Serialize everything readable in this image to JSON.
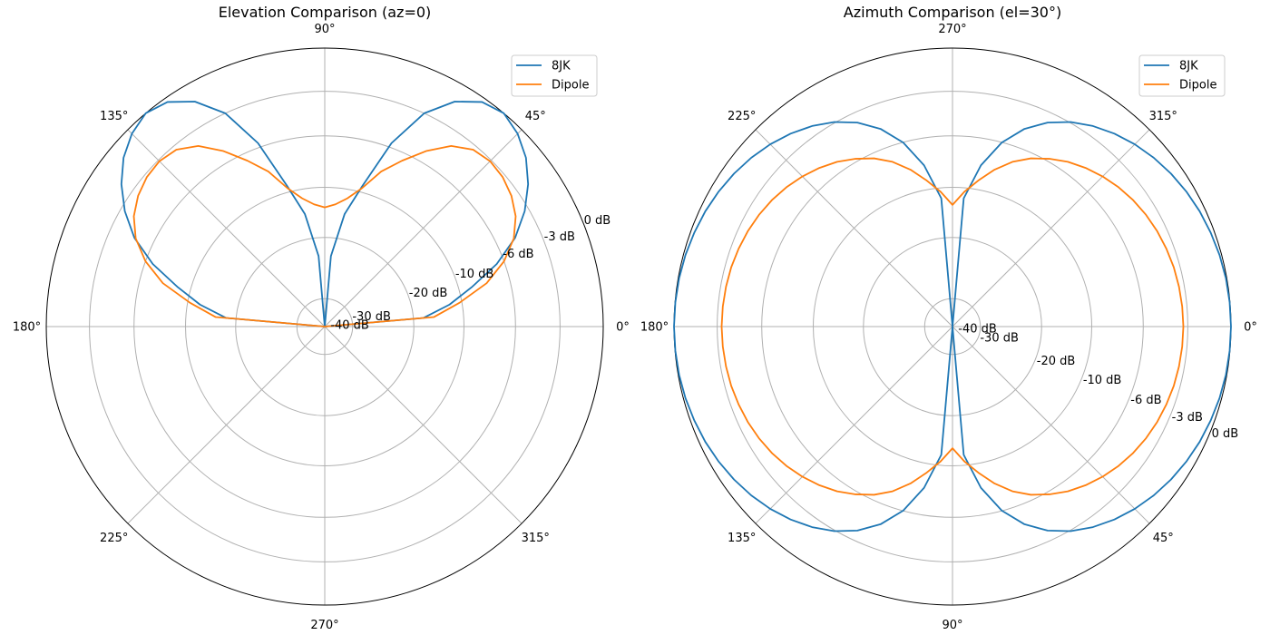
{
  "chart_data": [
    {
      "type": "line",
      "subtype": "polar",
      "title": "Elevation Comparison (az=0)",
      "theta_direction": "counterclockwise",
      "angle_tick_labels": [
        "0°",
        "45°",
        "90°",
        "135°",
        "180°",
        "225°",
        "270°",
        "315°"
      ],
      "angle_ticks_deg": [
        0,
        45,
        90,
        135,
        180,
        225,
        270,
        315
      ],
      "radial_tick_labels": [
        "-40 dB",
        "-30 dB",
        "-20 dB",
        "-10 dB",
        "-6 dB",
        "-3 dB",
        "0 dB"
      ],
      "radial_ticks_db": [
        -40,
        -30,
        -20,
        -10,
        -6,
        -3,
        0
      ],
      "radial_label_angle_deg": 22.5,
      "grid": true,
      "legend": "top-right",
      "series": [
        {
          "name": "8JK",
          "color": "#1f77b4",
          "theta": [
            0,
            5,
            10,
            15,
            20,
            25,
            30,
            35,
            40,
            45,
            50,
            55,
            60,
            65,
            70,
            75,
            80,
            85,
            90,
            95,
            100,
            105,
            110,
            115,
            120,
            125,
            130,
            135,
            140,
            145,
            150,
            155,
            160,
            165,
            170,
            175,
            180
          ],
          "db": [
            -40,
            -18,
            -12.5,
            -9,
            -6.6,
            -4.7,
            -3.3,
            -2.1,
            -1.1,
            -0.4,
            0,
            -0.3,
            -1.3,
            -3,
            -5.7,
            -9.5,
            -15,
            -23,
            -40,
            -23,
            -15,
            -9.5,
            -5.7,
            -3,
            -1.3,
            -0.3,
            0,
            -0.4,
            -1.1,
            -2.1,
            -3.3,
            -4.7,
            -6.6,
            -9,
            -12.5,
            -18,
            -40
          ]
        },
        {
          "name": "Dipole",
          "color": "#ff7f0e",
          "theta": [
            0,
            5,
            10,
            15,
            20,
            25,
            30,
            35,
            40,
            45,
            50,
            55,
            60,
            65,
            70,
            75,
            80,
            85,
            90,
            95,
            100,
            105,
            110,
            115,
            120,
            125,
            130,
            135,
            140,
            145,
            150,
            155,
            160,
            165,
            170,
            175,
            180
          ],
          "db": [
            -40,
            -15.9,
            -10.5,
            -7.8,
            -6,
            -4.8,
            -4,
            -3.5,
            -3.2,
            -3.1,
            -3.3,
            -4,
            -5.2,
            -6.6,
            -8,
            -9.7,
            -11.8,
            -13.3,
            -14,
            -13.3,
            -11.8,
            -9.7,
            -8,
            -6.6,
            -5.2,
            -4,
            -3.3,
            -3.1,
            -3.2,
            -3.5,
            -4,
            -4.8,
            -6,
            -7.8,
            -10.5,
            -15.9,
            -40
          ]
        }
      ]
    },
    {
      "type": "line",
      "subtype": "polar",
      "title": "Azimuth Comparison (el=30°)",
      "theta_direction": "clockwise",
      "angle_tick_labels": [
        "0°",
        "45°",
        "90°",
        "135°",
        "180°",
        "225°",
        "270°",
        "315°"
      ],
      "angle_ticks_deg": [
        0,
        45,
        90,
        135,
        180,
        225,
        270,
        315
      ],
      "radial_tick_labels": [
        "-40 dB",
        "-30 dB",
        "-20 dB",
        "-10 dB",
        "-6 dB",
        "-3 dB",
        "0 dB"
      ],
      "radial_ticks_db": [
        -40,
        -30,
        -20,
        -10,
        -6,
        -3,
        0
      ],
      "radial_label_angle_deg": 22.5,
      "grid": true,
      "legend": "top-right",
      "series": [
        {
          "name": "8JK",
          "color": "#1f77b4",
          "theta": [
            0,
            5,
            10,
            15,
            20,
            25,
            30,
            35,
            40,
            45,
            50,
            55,
            60,
            65,
            70,
            75,
            80,
            85,
            90,
            95,
            100,
            105,
            110,
            115,
            120,
            125,
            130,
            135,
            140,
            145,
            150,
            155,
            160,
            165,
            170,
            175,
            180,
            185,
            190,
            195,
            200,
            205,
            210,
            215,
            220,
            225,
            230,
            235,
            240,
            245,
            250,
            255,
            260,
            265,
            270,
            275,
            280,
            285,
            290,
            295,
            300,
            305,
            310,
            315,
            320,
            325,
            330,
            335,
            340,
            345,
            350,
            355,
            360
          ],
          "db": [
            0,
            -0.02,
            -0.06,
            -0.14,
            -0.26,
            -0.4,
            -0.59,
            -0.82,
            -1.1,
            -1.44,
            -1.85,
            -2.34,
            -2.94,
            -3.69,
            -4.68,
            -6.02,
            -8.1,
            -12.1,
            -40,
            -12.1,
            -8.1,
            -6.02,
            -4.68,
            -3.69,
            -2.94,
            -2.34,
            -1.85,
            -1.44,
            -1.1,
            -0.82,
            -0.59,
            -0.4,
            -0.26,
            -0.14,
            -0.06,
            -0.02,
            0,
            -0.02,
            -0.06,
            -0.14,
            -0.26,
            -0.4,
            -0.59,
            -0.82,
            -1.1,
            -1.44,
            -1.85,
            -2.34,
            -2.94,
            -3.69,
            -4.68,
            -6.02,
            -8.1,
            -12.1,
            -40,
            -12.1,
            -8.1,
            -6.02,
            -4.68,
            -3.69,
            -2.94,
            -2.34,
            -1.85,
            -1.44,
            -1.1,
            -0.82,
            -0.59,
            -0.4,
            -0.26,
            -0.14,
            -0.06,
            -0.02,
            0
          ]
        },
        {
          "name": "Dipole",
          "color": "#ff7f0e",
          "theta": [
            0,
            5,
            10,
            15,
            20,
            25,
            30,
            35,
            40,
            45,
            50,
            55,
            60,
            65,
            70,
            75,
            80,
            85,
            90,
            95,
            100,
            105,
            110,
            115,
            120,
            125,
            130,
            135,
            140,
            145,
            150,
            155,
            160,
            165,
            170,
            175,
            180,
            185,
            190,
            195,
            200,
            205,
            210,
            215,
            220,
            225,
            230,
            235,
            240,
            245,
            250,
            255,
            260,
            265,
            270,
            275,
            280,
            285,
            290,
            295,
            300,
            305,
            310,
            315,
            320,
            325,
            330,
            335,
            340,
            345,
            350,
            355,
            360
          ],
          "db": [
            -3.3,
            -3.32,
            -3.36,
            -3.42,
            -3.52,
            -3.64,
            -3.8,
            -4,
            -4.25,
            -4.55,
            -4.9,
            -5.3,
            -5.8,
            -6.4,
            -7.2,
            -8.2,
            -9.3,
            -10.8,
            -13.5,
            -10.8,
            -9.3,
            -8.2,
            -7.2,
            -6.4,
            -5.8,
            -5.3,
            -4.9,
            -4.55,
            -4.25,
            -4,
            -3.8,
            -3.64,
            -3.52,
            -3.42,
            -3.36,
            -3.32,
            -3.3,
            -3.32,
            -3.36,
            -3.42,
            -3.52,
            -3.64,
            -3.8,
            -4,
            -4.25,
            -4.55,
            -4.9,
            -5.3,
            -5.8,
            -6.4,
            -7.2,
            -8.2,
            -9.3,
            -10.8,
            -13.5,
            -10.8,
            -9.3,
            -8.2,
            -7.2,
            -6.4,
            -5.8,
            -5.3,
            -4.9,
            -4.55,
            -4.25,
            -4,
            -3.8,
            -3.64,
            -3.52,
            -3.42,
            -3.36,
            -3.32,
            -3.3
          ]
        }
      ]
    }
  ]
}
